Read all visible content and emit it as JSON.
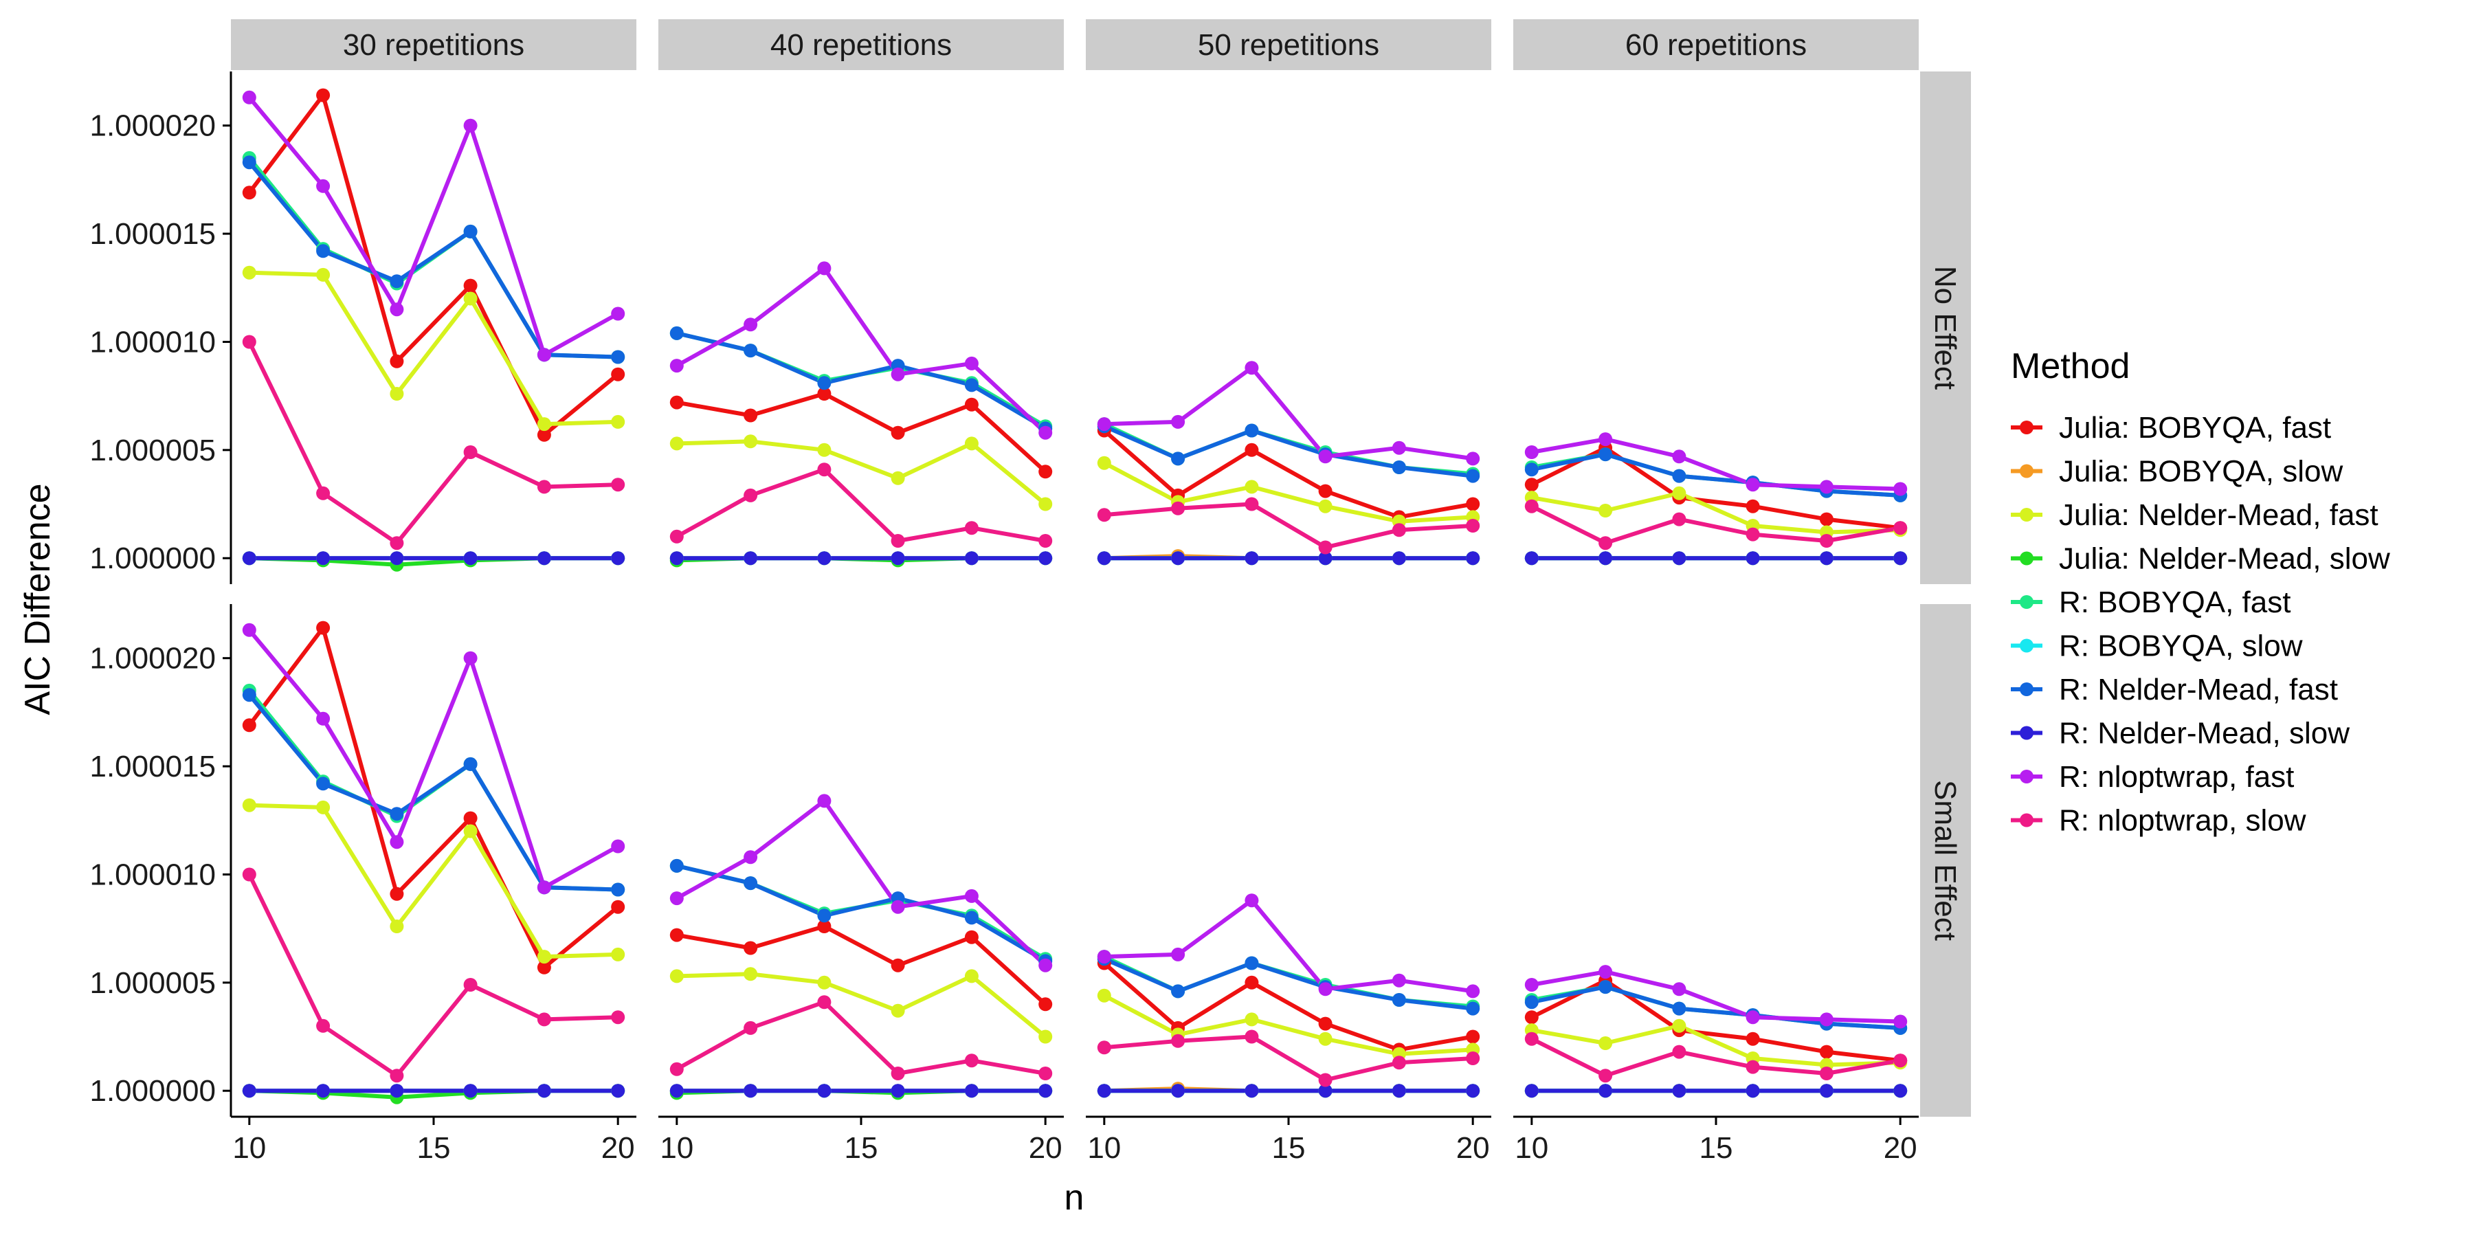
{
  "chart_data": {
    "type": "line",
    "xlabel": "n",
    "ylabel": "AIC Difference",
    "xlim": [
      9.5,
      20.5
    ],
    "ylim": [
      0.9999988,
      1.0000225
    ],
    "x_ticks": [
      10,
      15,
      20
    ],
    "y_ticks": [
      1.0,
      1.000005,
      1.00001,
      1.000015,
      1.00002
    ],
    "y_tick_labels": [
      "1.000000",
      "1.000005",
      "1.000010",
      "1.000015",
      "1.000020"
    ],
    "x_tick_labels": [
      "10",
      "15",
      "20"
    ],
    "grid": false,
    "legend_placement": "right",
    "legend_title": "Method",
    "facet_cols": [
      "30 repetitions",
      "40 repetitions",
      "50 repetitions",
      "60 repetitions"
    ],
    "facet_rows": [
      "No Effect",
      "Small Effect"
    ],
    "x": [
      10,
      12,
      14,
      16,
      18,
      20
    ],
    "series": [
      {
        "name": "Julia: BOBYQA, fast",
        "color": "#ee1111",
        "values": [
          [
            1.0000169,
            1.0000214,
            1.0000091,
            1.0000126,
            1.0000057,
            1.0000085
          ],
          [
            1.0000072,
            1.0000066,
            1.0000076,
            1.0000058,
            1.0000071,
            1.000004
          ],
          [
            1.0000059,
            1.0000029,
            1.000005,
            1.0000031,
            1.0000019,
            1.0000025
          ],
          [
            1.0000034,
            1.0000051,
            1.0000028,
            1.0000024,
            1.0000018,
            1.0000014
          ]
        ]
      },
      {
        "name": "Julia: BOBYQA, slow",
        "color": "#f59a23",
        "values": [
          [
            1.0,
            1.0,
            1.0,
            1.0,
            1.0,
            1.0
          ],
          [
            1.0,
            1.0,
            1.0,
            1.0,
            1.0,
            1.0
          ],
          [
            1.0,
            1.0000001,
            1.0,
            1.0,
            1.0,
            1.0
          ],
          [
            1.0,
            1.0,
            1.0,
            1.0,
            1.0,
            1.0
          ]
        ]
      },
      {
        "name": "Julia: Nelder-Mead, fast",
        "color": "#d6f21e",
        "values": [
          [
            1.0000132,
            1.0000131,
            1.0000076,
            1.000012,
            1.0000062,
            1.0000063
          ],
          [
            1.0000053,
            1.0000054,
            1.000005,
            1.0000037,
            1.0000053,
            1.0000025
          ],
          [
            1.0000044,
            1.0000026,
            1.0000033,
            1.0000024,
            1.0000017,
            1.0000019
          ],
          [
            1.0000028,
            1.0000022,
            1.000003,
            1.0000015,
            1.0000012,
            1.0000013
          ]
        ]
      },
      {
        "name": "Julia: Nelder-Mead, slow",
        "color": "#22dd22",
        "values": [
          [
            1.0,
            0.9999999,
            0.9999997,
            0.9999999,
            1.0,
            1.0
          ],
          [
            0.9999999,
            1.0,
            1.0,
            0.9999999,
            1.0,
            1.0
          ],
          [
            1.0,
            1.0,
            1.0,
            1.0,
            1.0,
            1.0
          ],
          [
            1.0,
            1.0,
            1.0,
            1.0,
            1.0,
            1.0
          ]
        ]
      },
      {
        "name": "R: BOBYQA, fast",
        "color": "#1ee886",
        "values": [
          [
            1.0000185,
            1.0000143,
            1.0000127,
            1.0000151,
            1.0000094,
            1.0000093
          ],
          [
            1.0000104,
            1.0000096,
            1.0000082,
            1.0000088,
            1.0000081,
            1.0000061
          ],
          [
            1.0000062,
            1.0000046,
            1.0000059,
            1.0000049,
            1.0000042,
            1.0000039
          ],
          [
            1.0000042,
            1.0000048,
            1.0000038,
            1.0000035,
            1.0000031,
            1.0000029
          ]
        ]
      },
      {
        "name": "R: BOBYQA, slow",
        "color": "#18e8f0",
        "values": [
          [
            1.0,
            1.0,
            1.0,
            1.0,
            1.0,
            1.0
          ],
          [
            1.0,
            1.0,
            1.0,
            1.0,
            1.0,
            1.0
          ],
          [
            1.0,
            1.0,
            1.0,
            1.0,
            1.0,
            1.0
          ],
          [
            1.0,
            1.0,
            1.0,
            1.0,
            1.0,
            1.0
          ]
        ]
      },
      {
        "name": "R: Nelder-Mead, fast",
        "color": "#1166dd",
        "values": [
          [
            1.0000183,
            1.0000142,
            1.0000128,
            1.0000151,
            1.0000094,
            1.0000093
          ],
          [
            1.0000104,
            1.0000096,
            1.0000081,
            1.0000089,
            1.000008,
            1.000006
          ],
          [
            1.0000061,
            1.0000046,
            1.0000059,
            1.0000048,
            1.0000042,
            1.0000038
          ],
          [
            1.0000041,
            1.0000048,
            1.0000038,
            1.0000035,
            1.0000031,
            1.0000029
          ]
        ]
      },
      {
        "name": "R: Nelder-Mead, slow",
        "color": "#2d1fd8",
        "values": [
          [
            1.0,
            1.0,
            1.0,
            1.0,
            1.0,
            1.0
          ],
          [
            1.0,
            1.0,
            1.0,
            1.0,
            1.0,
            1.0
          ],
          [
            1.0,
            1.0,
            1.0,
            1.0,
            1.0,
            1.0
          ],
          [
            1.0,
            1.0,
            1.0,
            1.0,
            1.0,
            1.0
          ]
        ]
      },
      {
        "name": "R: nloptwrap, fast",
        "color": "#b71ef0",
        "values": [
          [
            1.0000213,
            1.0000172,
            1.0000115,
            1.00002,
            1.0000094,
            1.0000113
          ],
          [
            1.0000089,
            1.0000108,
            1.0000134,
            1.0000085,
            1.000009,
            1.0000058
          ],
          [
            1.0000062,
            1.0000063,
            1.0000088,
            1.0000047,
            1.0000051,
            1.0000046
          ],
          [
            1.0000049,
            1.0000055,
            1.0000047,
            1.0000034,
            1.0000033,
            1.0000032
          ]
        ]
      },
      {
        "name": "R: nloptwrap, slow",
        "color": "#ee1a86",
        "values": [
          [
            1.00001,
            1.000003,
            1.0000007,
            1.0000049,
            1.0000033,
            1.0000034
          ],
          [
            1.000001,
            1.0000029,
            1.0000041,
            1.0000008,
            1.0000014,
            1.0000008
          ],
          [
            1.000002,
            1.0000023,
            1.0000025,
            1.0000005,
            1.0000013,
            1.0000015
          ],
          [
            1.0000024,
            1.0000007,
            1.0000018,
            1.0000011,
            1.0000008,
            1.0000014
          ]
        ]
      }
    ]
  }
}
